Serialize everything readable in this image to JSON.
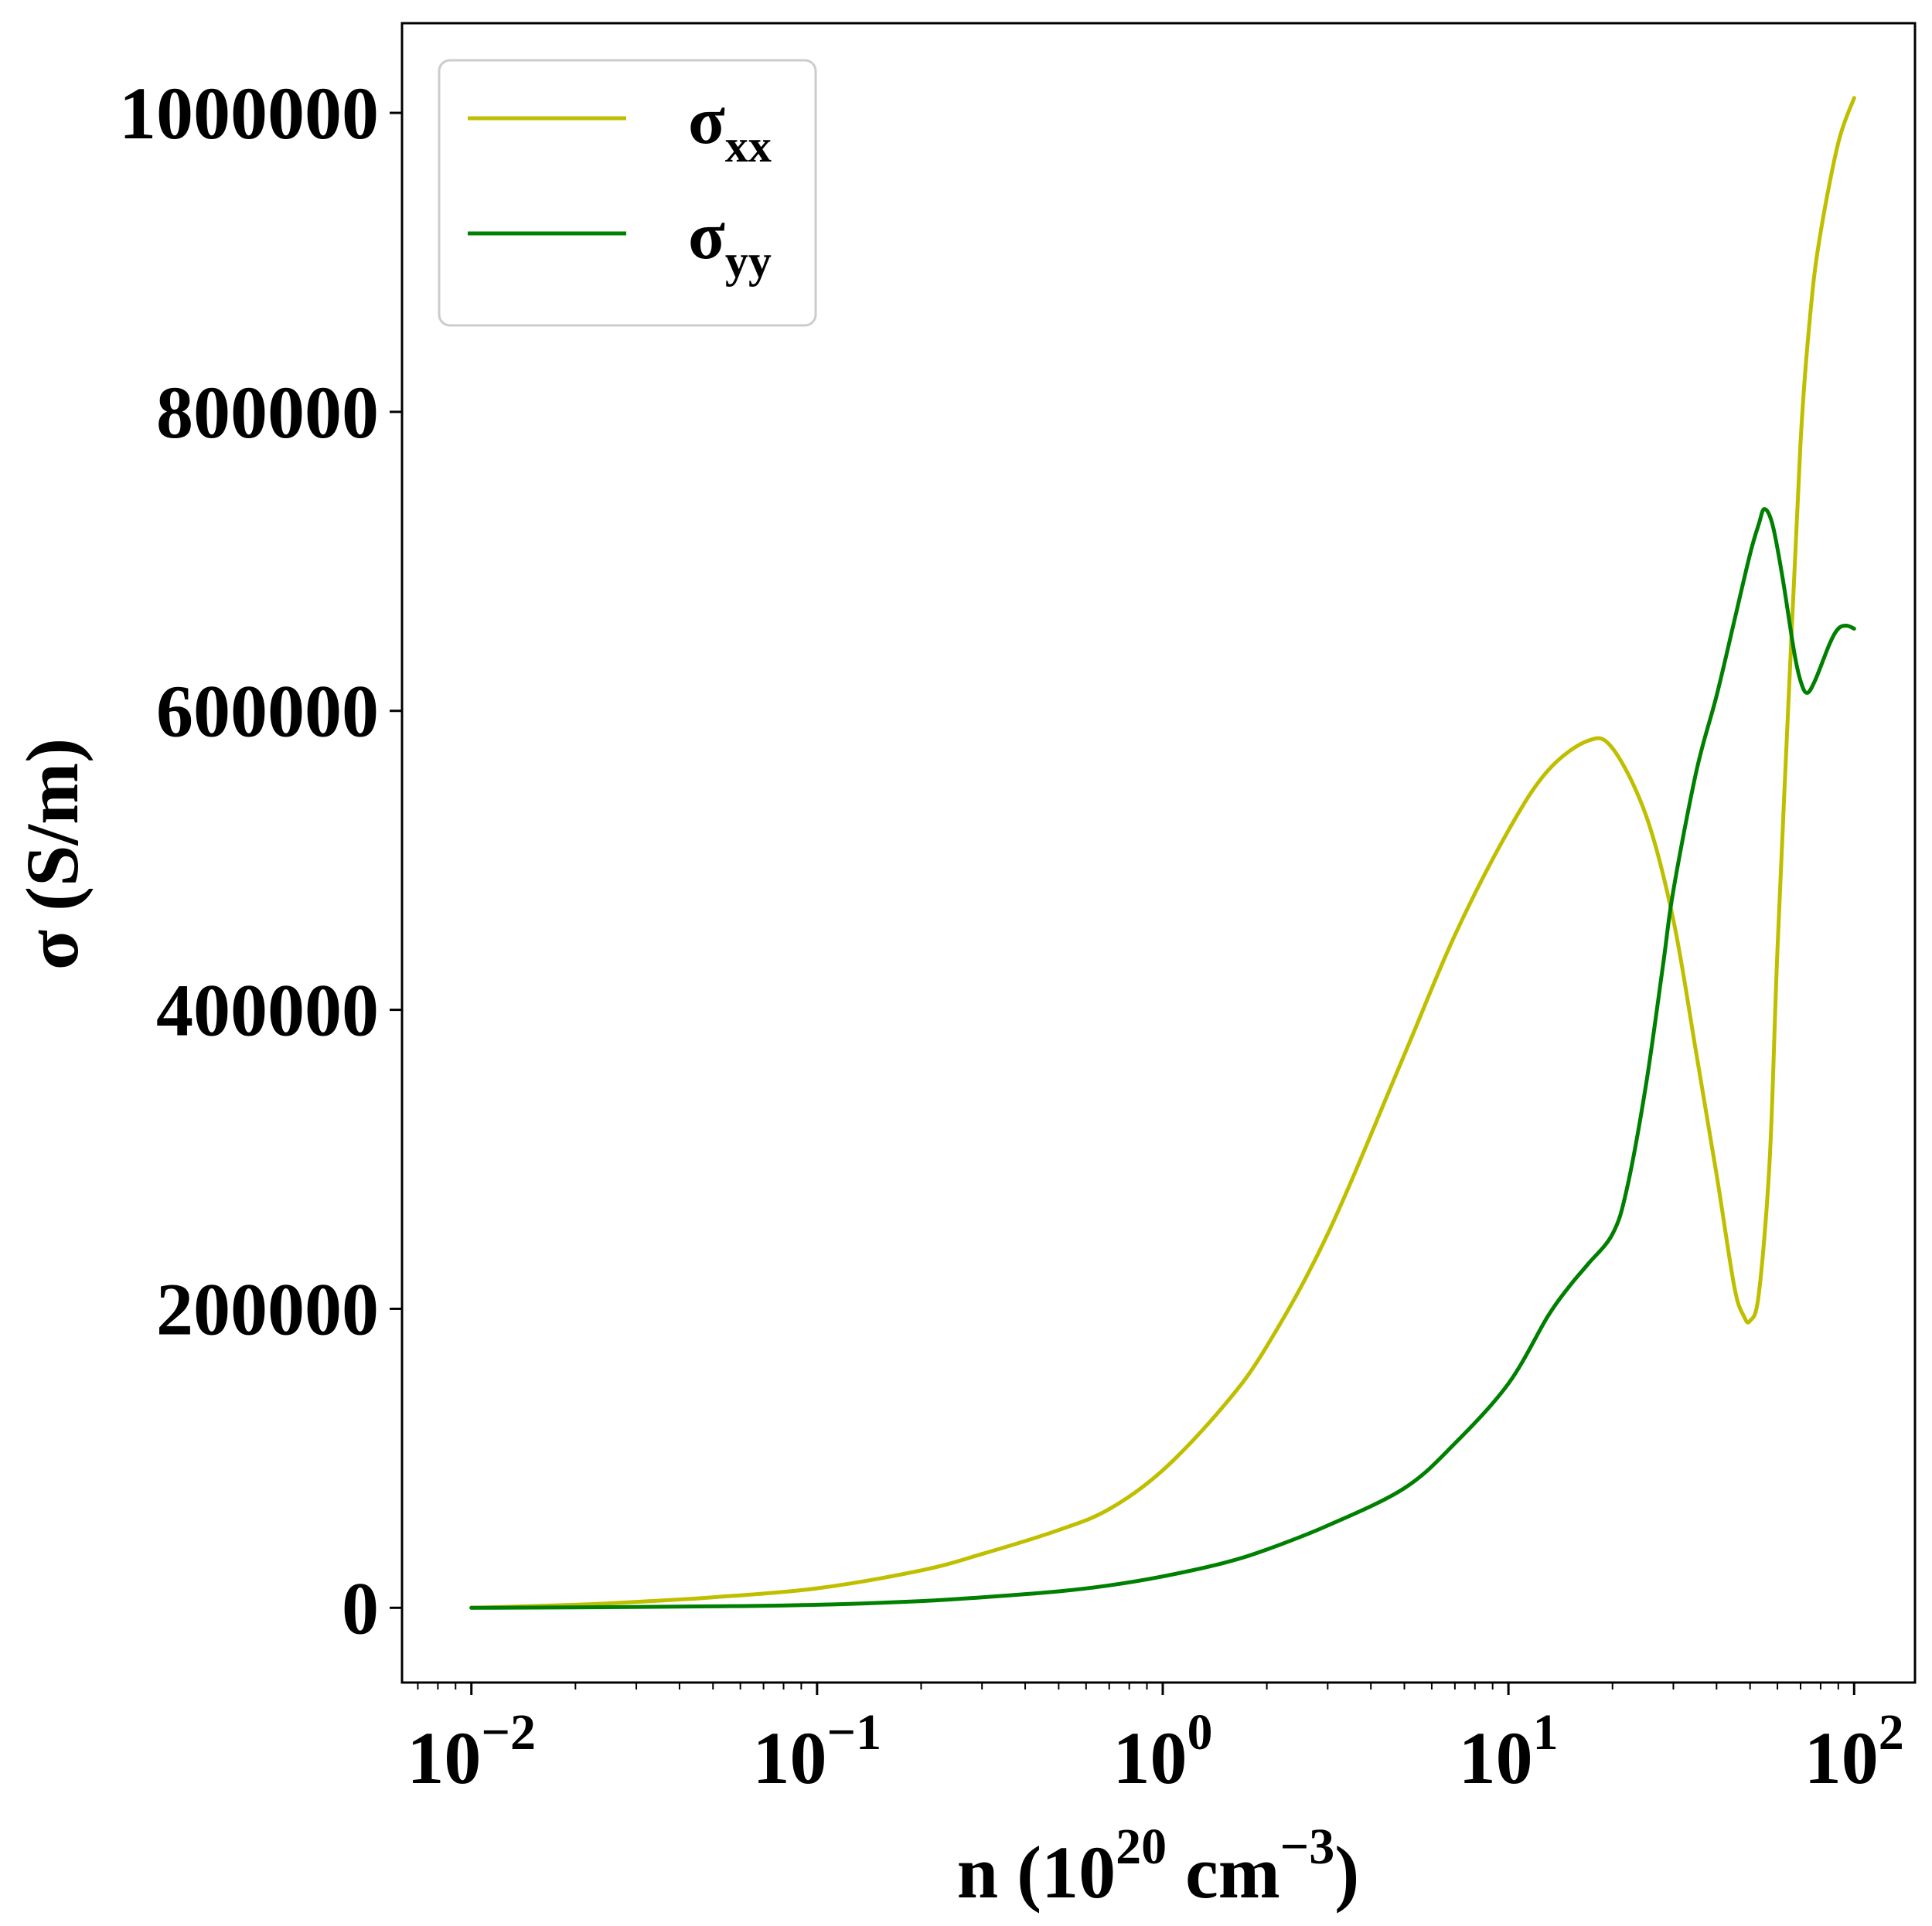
{
  "chart_data": {
    "type": "line",
    "title": "",
    "xlabel": {
      "prefix": "n (10",
      "exp1": "20",
      "mid": " cm",
      "exp2": "−3",
      "suffix": ")"
    },
    "ylabel": "σ (S/m)",
    "xscale": "log",
    "xlim": [
      0.0063,
      150
    ],
    "ylim": [
      -50000,
      1060000
    ],
    "grid": false,
    "legend_position": "top-left",
    "x_ticks": [
      {
        "value": 0.01,
        "base": "10",
        "exp": "−2"
      },
      {
        "value": 0.1,
        "base": "10",
        "exp": "−1"
      },
      {
        "value": 1,
        "base": "10",
        "exp": "0"
      },
      {
        "value": 10,
        "base": "10",
        "exp": "1"
      },
      {
        "value": 100,
        "base": "10",
        "exp": "2"
      }
    ],
    "y_ticks": [
      {
        "value": 0,
        "label": "0"
      },
      {
        "value": 200000,
        "label": "200000"
      },
      {
        "value": 400000,
        "label": "400000"
      },
      {
        "value": 600000,
        "label": "600000"
      },
      {
        "value": 800000,
        "label": "800000"
      },
      {
        "value": 1000000,
        "label": "1000000"
      }
    ],
    "series": [
      {
        "name": "σ",
        "subscript": "xx",
        "color": "#bfbf00",
        "x": [
          0.01,
          0.02,
          0.03,
          0.05,
          0.1,
          0.2,
          0.3,
          0.5,
          0.7,
          1,
          1.5,
          2,
          3,
          5,
          7,
          10,
          13,
          17,
          20,
          25,
          30,
          35,
          40,
          45,
          48,
          50,
          53,
          57,
          60,
          65,
          70,
          75,
          80,
          90,
          100
        ],
        "y": [
          0,
          2000,
          4000,
          7000,
          13000,
          25000,
          36000,
          52000,
          66000,
          92000,
          135000,
          175000,
          250000,
          370000,
          450000,
          520000,
          560000,
          580000,
          575000,
          530000,
          460000,
          370000,
          290000,
          215000,
          195000,
          192000,
          210000,
          300000,
          440000,
          620000,
          780000,
          870000,
          920000,
          980000,
          1010000
        ]
      },
      {
        "name": "σ",
        "subscript": "yy",
        "color": "#008000",
        "x": [
          0.01,
          0.02,
          0.05,
          0.1,
          0.2,
          0.3,
          0.5,
          0.7,
          1,
          1.5,
          2,
          3,
          5,
          7,
          10,
          13,
          15,
          17,
          20,
          22,
          25,
          28,
          30,
          35,
          40,
          45,
          50,
          53,
          55,
          58,
          62,
          67,
          70,
          73,
          77,
          85,
          90,
          95,
          100
        ],
        "y": [
          0,
          300,
          1000,
          2000,
          4500,
          7000,
          11000,
          15000,
          21000,
          30000,
          39000,
          55000,
          80000,
          110000,
          150000,
          195000,
          215000,
          230000,
          250000,
          280000,
          350000,
          430000,
          480000,
          560000,
          610000,
          660000,
          705000,
          725000,
          735000,
          725000,
          690000,
          640000,
          620000,
          612000,
          620000,
          645000,
          655000,
          657000,
          655000
        ]
      }
    ]
  }
}
